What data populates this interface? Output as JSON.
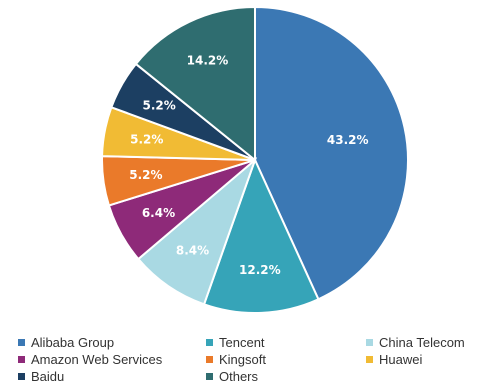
{
  "chart_data": {
    "type": "pie",
    "start_angle_deg": 0,
    "direction": "clockwise",
    "slices": [
      {
        "name": "Alibaba Group",
        "value": 43.2,
        "label": "43.2%",
        "color": "#3b78b4"
      },
      {
        "name": "Tencent",
        "value": 12.2,
        "label": "12.2%",
        "color": "#36a4b8"
      },
      {
        "name": "China Telecom",
        "value": 8.4,
        "label": "8.4%",
        "color": "#a9d9e3"
      },
      {
        "name": "Amazon Web Services",
        "value": 6.4,
        "label": "6.4%",
        "color": "#8e2a79"
      },
      {
        "name": "Kingsoft",
        "value": 5.2,
        "label": "5.2%",
        "color": "#ea7a2a"
      },
      {
        "name": "Huawei",
        "value": 5.2,
        "label": "5.2%",
        "color": "#f1bb34"
      },
      {
        "name": "Baidu",
        "value": 5.2,
        "label": "5.2%",
        "color": "#1c3f62"
      },
      {
        "name": "Others",
        "value": 14.2,
        "label": "14.2%",
        "color": "#2f6d70"
      }
    ],
    "legend_placement": "bottom"
  },
  "legend": [
    {
      "label": "Alibaba Group",
      "color": "#3b78b4"
    },
    {
      "label": "Tencent",
      "color": "#36a4b8"
    },
    {
      "label": "China Telecom",
      "color": "#a9d9e3"
    },
    {
      "label": "Amazon Web Services",
      "color": "#8e2a79"
    },
    {
      "label": "Kingsoft",
      "color": "#ea7a2a"
    },
    {
      "label": "Huawei",
      "color": "#f1bb34"
    },
    {
      "label": "Baidu",
      "color": "#1c3f62"
    },
    {
      "label": "Others",
      "color": "#2f6d70"
    }
  ]
}
